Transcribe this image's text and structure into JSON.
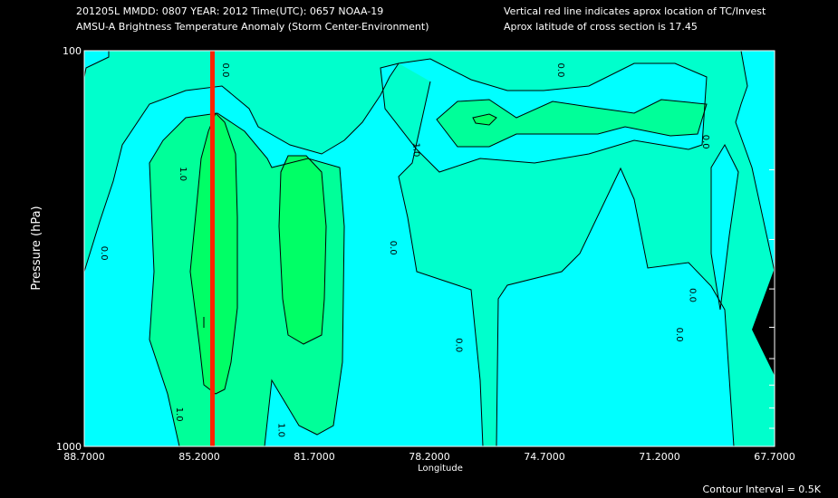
{
  "header": {
    "line1_left": "201205L  MMDD: 0807 YEAR: 2012 Time(UTC): 0657 NOAA-19",
    "line2_left": "AMSU-A Brightness Temperature Anomaly (Storm Center-Environment)",
    "line1_right": "Vertical red line indicates aprox location of TC/Invest",
    "line2_right": "Aprox latitude of cross section is 17.45"
  },
  "footer": {
    "contour_interval": "Contour Interval = 0.5K"
  },
  "colors": {
    "background": "#000000",
    "level_neg": "#00ffff",
    "level_0": "#00ffcc",
    "level_0_5": "#00ff99",
    "level_1": "#00ff66",
    "storm_line": "#ff2200",
    "contour": "#000000"
  },
  "chart_data": {
    "type": "contour",
    "title": "AMSU-A Brightness Temperature Anomaly (Storm Center-Environment)",
    "xlabel": "Longitude",
    "ylabel": "Pressure (hPa)",
    "x_tick_labels": [
      "88.7000",
      "85.2000",
      "81.7000",
      "78.2000",
      "74.7000",
      "71.2000",
      "67.7000"
    ],
    "y_tick_labels": [
      "100",
      "1000"
    ],
    "xlim": [
      88.7,
      67.7
    ],
    "ylim": [
      1000,
      100
    ],
    "y_scale": "log",
    "storm_longitude": 84.8,
    "latitude": 17.45,
    "contour_interval_K": 0.5,
    "contour_labels": [
      {
        "text": "0.0",
        "lon": 84.4,
        "p": 112
      },
      {
        "text": "0.0",
        "lon": 74.2,
        "p": 112
      },
      {
        "text": "1.0",
        "lon": 78.6,
        "p": 178
      },
      {
        "text": "1.0",
        "lon": 85.7,
        "p": 205
      },
      {
        "text": "0.0",
        "lon": 88.1,
        "p": 325
      },
      {
        "text": "0.0",
        "lon": 79.3,
        "p": 315
      },
      {
        "text": "0.0",
        "lon": 69.8,
        "p": 170
      },
      {
        "text": "0.0",
        "lon": 70.2,
        "p": 415
      },
      {
        "text": "0.0",
        "lon": 70.6,
        "p": 522
      },
      {
        "text": "0.0",
        "lon": 77.3,
        "p": 555
      },
      {
        "text": "1.0",
        "lon": 85.8,
        "p": 830
      },
      {
        "text": "1.0",
        "lon": 82.7,
        "p": 910
      }
    ]
  }
}
